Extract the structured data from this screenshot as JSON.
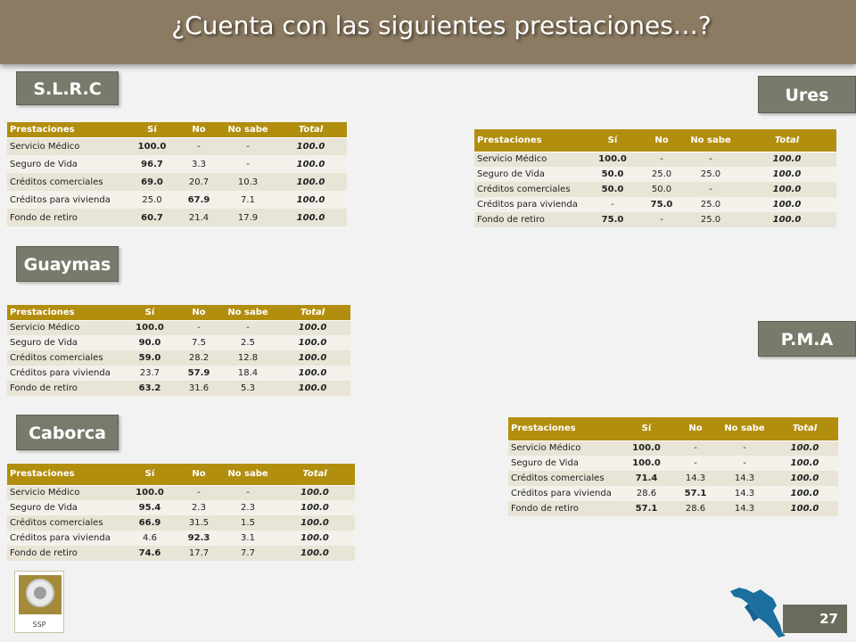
{
  "title": "¿Cuenta  con las siguientes prestaciones…?",
  "columns": {
    "prest": "Prestaciones",
    "si": "Sí",
    "no": "No",
    "nosabe": "No sabe",
    "total": "Total"
  },
  "slrc": {
    "label": "S.L.R.C",
    "rows": [
      {
        "name": "Servicio Médico",
        "si": "100.0",
        "no": "-",
        "nosabe": "-",
        "total": "100.0"
      },
      {
        "name": "Seguro de Vida",
        "si": "96.7",
        "no": "3.3",
        "nosabe": "-",
        "total": "100.0"
      },
      {
        "name": "Créditos comerciales",
        "si": "69.0",
        "no": "20.7",
        "nosabe": "10.3",
        "total": "100.0"
      },
      {
        "name": "Créditos para vivienda",
        "si": "25.0",
        "no": "67.9",
        "nosabe": "7.1",
        "total": "100.0"
      },
      {
        "name": "Fondo de retiro",
        "si": "60.7",
        "no": "21.4",
        "nosabe": "17.9",
        "total": "100.0"
      }
    ]
  },
  "ures": {
    "label": "Ures",
    "rows": [
      {
        "name": "Servicio Médico",
        "si": "100.0",
        "no": "-",
        "nosabe": "-",
        "total": "100.0"
      },
      {
        "name": "Seguro de Vida",
        "si": "50.0",
        "no": "25.0",
        "nosabe": "25.0",
        "total": "100.0"
      },
      {
        "name": "Créditos comerciales",
        "si": "50.0",
        "no": "50.0",
        "nosabe": "-",
        "total": "100.0"
      },
      {
        "name": "Créditos para vivienda",
        "si": "-",
        "no": "75.0",
        "nosabe": "25.0",
        "total": "100.0"
      },
      {
        "name": "Fondo de retiro",
        "si": "75.0",
        "no": "-",
        "nosabe": "25.0",
        "total": "100.0"
      }
    ]
  },
  "guaymas": {
    "label": "Guaymas",
    "rows": [
      {
        "name": "Servicio Médico",
        "si": "100.0",
        "no": "-",
        "nosabe": "-",
        "total": "100.0"
      },
      {
        "name": "Seguro de Vida",
        "si": "90.0",
        "no": "7.5",
        "nosabe": "2.5",
        "total": "100.0"
      },
      {
        "name": "Créditos comerciales",
        "si": "59.0",
        "no": "28.2",
        "nosabe": "12.8",
        "total": "100.0"
      },
      {
        "name": "Créditos para vivienda",
        "si": "23.7",
        "no": "57.9",
        "nosabe": "18.4",
        "total": "100.0"
      },
      {
        "name": "Fondo de retiro",
        "si": "63.2",
        "no": "31.6",
        "nosabe": "5.3",
        "total": "100.0"
      }
    ]
  },
  "pma": {
    "label": "P.M.A",
    "rows": [
      {
        "name": "Servicio Médico",
        "si": "100.0",
        "no": "-",
        "nosabe": "-",
        "total": "100.0"
      },
      {
        "name": "Seguro de Vida",
        "si": "100.0",
        "no": "-",
        "nosabe": "-",
        "total": "100.0"
      },
      {
        "name": "Créditos comerciales",
        "si": "71.4",
        "no": "14.3",
        "nosabe": "14.3",
        "total": "100.0"
      },
      {
        "name": "Créditos para vivienda",
        "si": "28.6",
        "no": "57.1",
        "nosabe": "14.3",
        "total": "100.0"
      },
      {
        "name": "Fondo de retiro",
        "si": "57.1",
        "no": "28.6",
        "nosabe": "14.3",
        "total": "100.0"
      }
    ]
  },
  "caborca": {
    "label": "Caborca",
    "rows": [
      {
        "name": "Servicio Médico",
        "si": "100.0",
        "no": "-",
        "nosabe": "-",
        "total": "100.0"
      },
      {
        "name": "Seguro de Vida",
        "si": "95.4",
        "no": "2.3",
        "nosabe": "2.3",
        "total": "100.0"
      },
      {
        "name": "Créditos comerciales",
        "si": "66.9",
        "no": "31.5",
        "nosabe": "1.5",
        "total": "100.0"
      },
      {
        "name": "Créditos para vivienda",
        "si": "4.6",
        "no": "92.3",
        "nosabe": "3.1",
        "total": "100.0"
      },
      {
        "name": "Fondo de retiro",
        "si": "74.6",
        "no": "17.7",
        "nosabe": "7.7",
        "total": "100.0"
      }
    ]
  },
  "logo": {
    "text": "SSP"
  },
  "page_number": "27",
  "map_icon": "sonora-map-icon"
}
